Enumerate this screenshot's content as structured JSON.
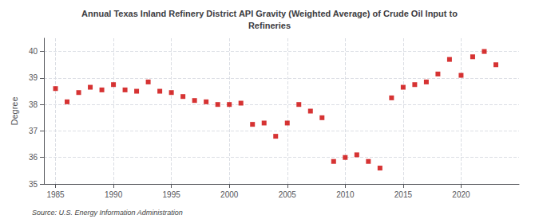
{
  "chart_data": {
    "type": "scatter",
    "title": "Annual Texas Inland Refinery District API Gravity (Weighted Average) of Crude Oil Input to\nRefineries",
    "y_label": "Degree",
    "annotation": "Source: U.S. Energy Information Administration",
    "color": "#cc0000",
    "marker": "square",
    "grid": true,
    "xlim": [
      1984,
      2025
    ],
    "ylim": [
      35,
      40.5
    ],
    "xticks": [
      1985,
      1990,
      1995,
      2000,
      2005,
      2010,
      2015,
      2020
    ],
    "yticks": [
      35,
      36,
      37,
      38,
      39,
      40
    ],
    "x": [
      1985,
      1986,
      1987,
      1988,
      1989,
      1990,
      1991,
      1992,
      1993,
      1994,
      1995,
      1996,
      1997,
      1998,
      1999,
      2000,
      2001,
      2002,
      2003,
      2004,
      2005,
      2006,
      2007,
      2008,
      2009,
      2010,
      2011,
      2012,
      2013,
      2014,
      2015,
      2016,
      2017,
      2018,
      2019,
      2020,
      2021,
      2022,
      2023
    ],
    "values": [
      38.6,
      38.1,
      38.45,
      38.65,
      38.55,
      38.75,
      38.55,
      38.5,
      38.85,
      38.5,
      38.45,
      38.3,
      38.15,
      38.1,
      38.0,
      38.0,
      38.05,
      37.25,
      37.3,
      36.8,
      37.3,
      38.0,
      37.75,
      37.5,
      35.85,
      36.0,
      36.1,
      35.85,
      35.6,
      38.25,
      38.65,
      38.75,
      38.85,
      39.15,
      39.7,
      39.1,
      39.8,
      40.0,
      39.5
    ]
  }
}
